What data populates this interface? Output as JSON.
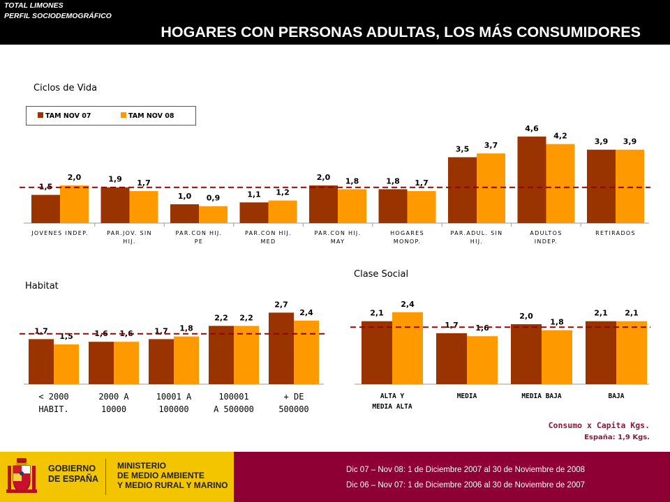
{
  "header": {
    "brand_line1": "TOTAL LIMONES",
    "brand_line2": "PERFIL SOCIODEMOGRÁFICO",
    "headline": "HOGARES CON PERSONAS ADULTAS, LOS MÁS CONSUMIDORES"
  },
  "colors": {
    "series_a": "#993300",
    "series_b": "#ff9900",
    "reference_line": "#990000",
    "footer_band": "#8e0034",
    "footer_gold": "#f2c500"
  },
  "legend": {
    "a": "TAM NOV 07",
    "b": "TAM NOV 08"
  },
  "notes": {
    "consumption": "Consumo x Capita Kgs.",
    "spain": "España: 1,9 Kgs."
  },
  "footer": {
    "gov_line1": "GOBIERNO",
    "gov_line2": "DE ESPAÑA",
    "ministry_line1": "MINISTERIO",
    "ministry_line2": "DE MEDIO AMBIENTE",
    "ministry_line3": "Y MEDIO RURAL Y MARINO",
    "period_08": "Dic 07 – Nov 08: 1 de Diciembre 2007 al 30 de Noviembre de 2008",
    "period_07": "Dic 06 – Nov 07: 1 de Diciembre 2006 al 30 de Noviembre de 2007"
  },
  "chart_data": [
    {
      "type": "bar",
      "title": "Ciclos de Vida",
      "categories": [
        [
          "JOVENES INDEP."
        ],
        [
          "PAR.JOV. SIN",
          "HIJ."
        ],
        [
          "PAR.CON HIJ.",
          "PE"
        ],
        [
          "PAR.CON HIJ.",
          "MED"
        ],
        [
          "PAR.CON HIJ.",
          "MAY"
        ],
        [
          "HOGARES",
          "MONOP."
        ],
        [
          "PAR.ADUL. SIN",
          "HIJ."
        ],
        [
          "ADULTOS",
          "INDEP."
        ],
        [
          "RETIRADOS"
        ]
      ],
      "series": [
        {
          "name": "TAM NOV 07",
          "values": [
            1.5,
            1.9,
            1.0,
            1.1,
            2.0,
            1.8,
            3.5,
            4.6,
            3.9
          ],
          "labels": [
            "1,5",
            "1,9",
            "1,0",
            "1,1",
            "2,0",
            "1,8",
            "3,5",
            "4,6",
            "3,9"
          ]
        },
        {
          "name": "TAM NOV 08",
          "values": [
            2.0,
            1.7,
            0.9,
            1.2,
            1.8,
            1.7,
            3.7,
            4.2,
            3.9
          ],
          "labels": [
            "2,0",
            "1,7",
            "0,9",
            "1,2",
            "1,8",
            "1,7",
            "3,7",
            "4,2",
            "3,9"
          ]
        }
      ],
      "reference_line": 1.9,
      "legend_position": "top-left"
    },
    {
      "type": "bar",
      "title": "Habitat",
      "categories": [
        [
          "< 2000",
          "HABIT."
        ],
        [
          "2000 A",
          "10000"
        ],
        [
          "10001 A",
          "100000"
        ],
        [
          "100001",
          "A 500000"
        ],
        [
          "+ DE",
          "500000"
        ]
      ],
      "series": [
        {
          "name": "TAM NOV 07",
          "values": [
            1.7,
            1.6,
            1.7,
            2.2,
            2.7
          ],
          "labels": [
            "1,7",
            "1,6",
            "1,7",
            "2,2",
            "2,7"
          ]
        },
        {
          "name": "TAM NOV 08",
          "values": [
            1.5,
            1.6,
            1.8,
            2.2,
            2.4
          ],
          "labels": [
            "1,5",
            "1,6",
            "1,8",
            "2,2",
            "2,4"
          ]
        }
      ],
      "reference_line": 1.9
    },
    {
      "type": "bar",
      "title": "Clase Social",
      "categories": [
        [
          "ALTA Y",
          "MEDIA ALTA"
        ],
        [
          "MEDIA"
        ],
        [
          "MEDIA BAJA"
        ],
        [
          "BAJA"
        ]
      ],
      "series": [
        {
          "name": "TAM NOV 07",
          "values": [
            2.1,
            1.7,
            2.0,
            2.1
          ],
          "labels": [
            "2,1",
            "1,7",
            "2,0",
            "2,1"
          ]
        },
        {
          "name": "TAM NOV 08",
          "values": [
            2.4,
            1.6,
            1.8,
            2.1
          ],
          "labels": [
            "2,4",
            "1,6",
            "1,8",
            "2,1"
          ]
        }
      ],
      "reference_line": 1.9
    }
  ]
}
